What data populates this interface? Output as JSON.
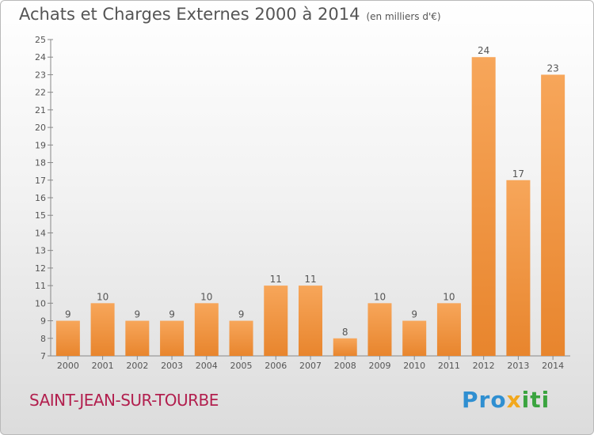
{
  "title": "Achats et Charges Externes 2000 à 2014",
  "subtitle": "(en milliers d'€)",
  "commune": "SAINT-JEAN-SUR-TOURBE",
  "brand": {
    "part1": "Pro",
    "part2": "x",
    "part3": "iti"
  },
  "colors": {
    "bar_light": "#f7a65a",
    "bar_dark": "#e8852d",
    "axis": "#888888",
    "text": "#555555",
    "commune": "#b21f4e"
  },
  "chart_data": {
    "type": "bar",
    "categories": [
      "2000",
      "2001",
      "2002",
      "2003",
      "2004",
      "2005",
      "2006",
      "2007",
      "2008",
      "2009",
      "2010",
      "2011",
      "2012",
      "2013",
      "2014"
    ],
    "values": [
      9,
      10,
      9,
      9,
      10,
      9,
      11,
      11,
      8,
      10,
      9,
      10,
      24,
      17,
      23
    ],
    "ylim": [
      7,
      25
    ],
    "yticks": [
      7,
      8,
      9,
      10,
      11,
      12,
      13,
      14,
      15,
      16,
      17,
      18,
      19,
      20,
      21,
      22,
      23,
      24,
      25
    ],
    "grid": false,
    "data_labels": true
  }
}
